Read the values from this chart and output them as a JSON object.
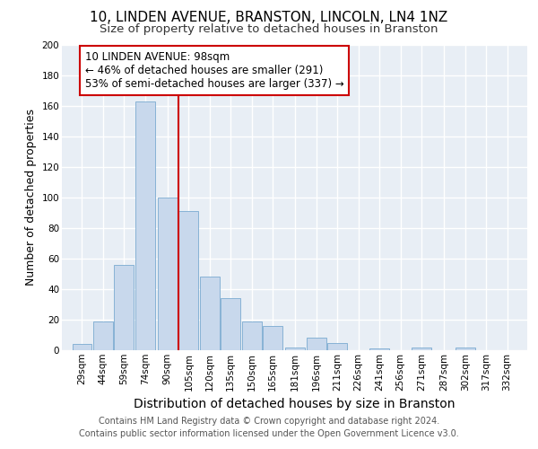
{
  "title1": "10, LINDEN AVENUE, BRANSTON, LINCOLN, LN4 1NZ",
  "title2": "Size of property relative to detached houses in Branston",
  "xlabel": "Distribution of detached houses by size in Branston",
  "ylabel": "Number of detached properties",
  "bins": [
    29,
    44,
    59,
    74,
    90,
    105,
    120,
    135,
    150,
    165,
    181,
    196,
    211,
    226,
    241,
    256,
    271,
    287,
    302,
    317,
    332
  ],
  "values": [
    4,
    19,
    56,
    163,
    100,
    91,
    48,
    34,
    19,
    16,
    2,
    8,
    5,
    0,
    1,
    0,
    2,
    0,
    2,
    0
  ],
  "bar_color": "#c8d8ec",
  "bar_edge_color": "#7aaad0",
  "vline_x": 98,
  "vline_color": "#cc0000",
  "annotation_line1": "10 LINDEN AVENUE: 98sqm",
  "annotation_line2": "← 46% of detached houses are smaller (291)",
  "annotation_line3": "53% of semi-detached houses are larger (337) →",
  "annotation_box_color": "#ffffff",
  "annotation_box_edge": "#cc0000",
  "ylim": [
    0,
    200
  ],
  "yticks": [
    0,
    20,
    40,
    60,
    80,
    100,
    120,
    140,
    160,
    180,
    200
  ],
  "background_color": "#e8eef5",
  "footer1": "Contains HM Land Registry data © Crown copyright and database right 2024.",
  "footer2": "Contains public sector information licensed under the Open Government Licence v3.0.",
  "title1_fontsize": 11,
  "title2_fontsize": 9.5,
  "xlabel_fontsize": 10,
  "ylabel_fontsize": 9,
  "tick_fontsize": 7.5,
  "annotation_fontsize": 8.5,
  "footer_fontsize": 7
}
